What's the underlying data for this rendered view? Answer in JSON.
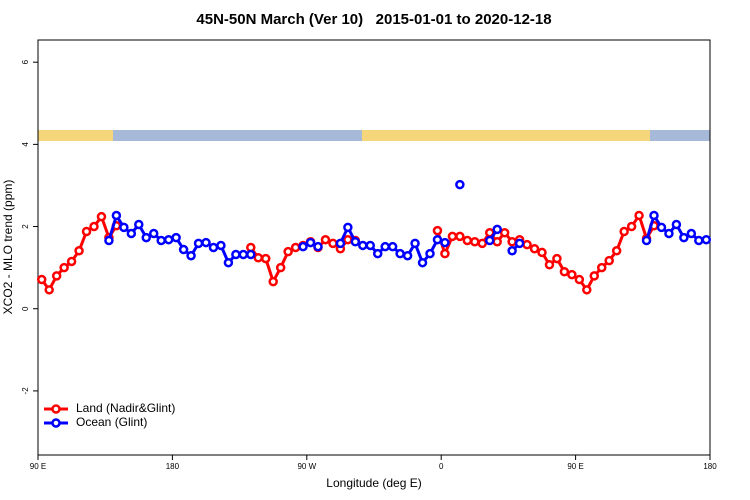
{
  "chart_data": {
    "type": "line",
    "title": "45N-50N March (Ver 10)   2015-01-01 to 2020-12-18",
    "x_label": "Longitude (deg E)",
    "y_label": "XCO2 - MLO trend (ppm)",
    "xlim": [
      90,
      540
    ],
    "xticks": [
      {
        "value": 90,
        "label": "90 E"
      },
      180,
      {
        "value": 270,
        "label": "90 W"
      },
      {
        "value": 360,
        "label": "0"
      },
      {
        "value": 450,
        "label": "90 E"
      },
      {
        "value": 540,
        "label": "180"
      }
    ],
    "ylim": [
      -3.56,
      6.54
    ],
    "yticks": [
      -2,
      0,
      2,
      4,
      6
    ],
    "grid": false,
    "legend": "bottomleft",
    "series": [
      {
        "name": "Land (Nadir&Glint)",
        "color": "#ff0000",
        "x": [
          92.5,
          97.5,
          102.5,
          107.5,
          112.5,
          117.5,
          122.5,
          127.5,
          132.5,
          137.5,
          142.5,
          147.5,
          232.5,
          237.5,
          242.5,
          247.5,
          252.5,
          257.5,
          262.5,
          267.5,
          272.5,
          277.5,
          282.5,
          287.5,
          292.5,
          297.5,
          302.5,
          307.5,
          357.5,
          362.5,
          367.5,
          372.5,
          377.5,
          382.5,
          387.5,
          392.5,
          397.5,
          402.5,
          407.5,
          412.5,
          417.5,
          422.5,
          427.5,
          432.5,
          437.5,
          442.5,
          447.5,
          452.5,
          457.5,
          462.5,
          467.5,
          472.5,
          477.5,
          482.5,
          487.5,
          492.5,
          497.5,
          502.5
        ],
        "values": [
          0.71,
          0.46,
          0.8,
          1.0,
          1.15,
          1.41,
          1.88,
          2.0,
          2.24,
          1.73,
          2.02,
          null,
          1.49,
          1.24,
          1.22,
          0.66,
          1.0,
          1.39,
          1.49,
          1.54,
          1.63,
          1.49,
          1.68,
          1.59,
          1.46,
          1.68,
          1.66,
          null,
          1.9,
          1.34,
          1.76,
          1.76,
          1.66,
          1.63,
          1.59,
          1.85,
          1.63,
          1.85,
          1.63,
          1.68,
          1.56,
          1.46,
          1.37,
          1.07,
          1.22,
          0.9,
          0.83,
          0.71,
          0.46,
          0.8,
          1.0,
          1.17,
          1.41,
          1.88,
          2.0,
          2.27,
          1.71,
          2.02
        ]
      },
      {
        "name": "Ocean (Glint)",
        "color": "#0000ff",
        "x": [
          137.5,
          142.5,
          147.5,
          152.5,
          157.5,
          162.5,
          167.5,
          172.5,
          177.5,
          182.5,
          187.5,
          192.5,
          197.5,
          202.5,
          207.5,
          212.5,
          217.5,
          222.5,
          227.5,
          232.5,
          237.5,
          267.5,
          272.5,
          277.5,
          282.5,
          292.5,
          297.5,
          302.5,
          307.5,
          312.5,
          317.5,
          322.5,
          327.5,
          332.5,
          337.5,
          342.5,
          347.5,
          352.5,
          357.5,
          362.5,
          367.5,
          372.5,
          377.5,
          392.5,
          397.5,
          402.5,
          407.5,
          412.5,
          417.5,
          497.5,
          502.5,
          507.5,
          512.5,
          517.5,
          522.5,
          527.5,
          532.5,
          537.5
        ],
        "values": [
          1.66,
          2.27,
          1.98,
          1.83,
          2.05,
          1.73,
          1.83,
          1.66,
          1.68,
          1.73,
          1.44,
          1.29,
          1.59,
          1.61,
          1.49,
          1.54,
          1.12,
          1.32,
          1.32,
          1.32,
          null,
          1.51,
          1.61,
          1.51,
          null,
          1.59,
          1.98,
          1.63,
          1.54,
          1.54,
          1.34,
          1.51,
          1.51,
          1.34,
          1.29,
          1.59,
          1.12,
          1.34,
          1.68,
          1.61,
          null,
          3.02,
          null,
          1.66,
          1.93,
          null,
          1.41,
          1.59,
          null,
          1.66,
          2.27,
          1.98,
          1.83,
          2.05,
          1.73,
          1.83,
          1.66,
          1.68
        ]
      }
    ]
  }
}
